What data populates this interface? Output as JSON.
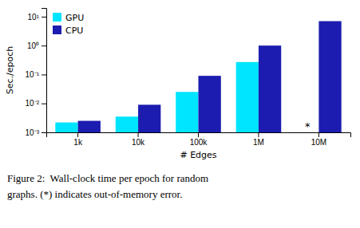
{
  "chart_data": {
    "type": "bar",
    "categories": [
      "1k",
      "10k",
      "100k",
      "1M",
      "10M"
    ],
    "series": [
      {
        "name": "GPU",
        "color": "#00E5FF",
        "values": [
          0.0022,
          0.0035,
          0.025,
          0.27,
          null
        ]
      },
      {
        "name": "CPU",
        "color": "#1C1CB0",
        "values": [
          0.0025,
          0.009,
          0.09,
          1.0,
          7.0
        ]
      }
    ],
    "x_label": "# Edges",
    "y_label": "Sec./epoch",
    "log": "y",
    "ylim": [
      0.001,
      20
    ],
    "yticks": [
      {
        "value": 0.001,
        "label": "10⁻³"
      },
      {
        "value": 0.01,
        "label": "10⁻²"
      },
      {
        "value": 0.1,
        "label": "10⁻¹"
      },
      {
        "value": 1,
        "label": "10⁰"
      },
      {
        "value": 10,
        "label": "10¹"
      }
    ],
    "grid": false,
    "legend": "upper left",
    "annotations": [
      {
        "text": "*",
        "x": "10M",
        "series": "GPU"
      }
    ],
    "caption": [
      "Figure 2:  Wall-clock time per epoch for random",
      "graphs. (*) indicates out-of-memory error."
    ]
  }
}
